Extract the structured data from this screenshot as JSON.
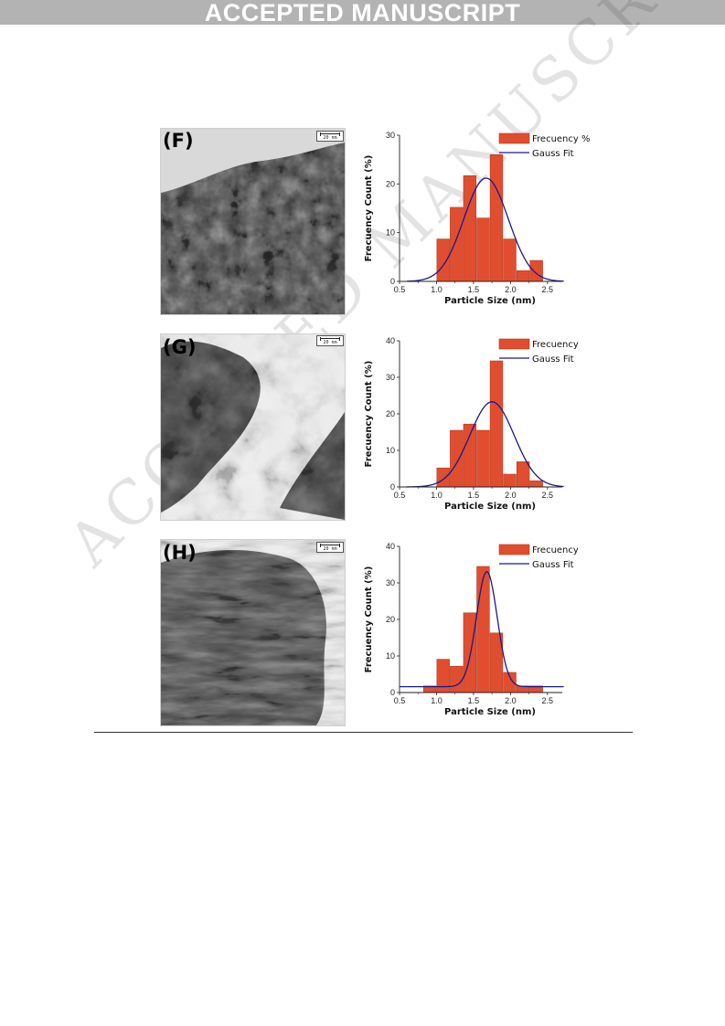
{
  "banner": {
    "text": "ACCEPTED MANUSCRIPT",
    "background": "#b3b3b3"
  },
  "watermark": {
    "text": "ACCEPTED MANUSCRIPT"
  },
  "colors": {
    "bar": "#e04e2f",
    "bar_edge": "#b23a22",
    "fit": "#1a1a8c"
  },
  "panels": [
    {
      "label": "(F)",
      "image": {
        "kind": "TEM micrograph",
        "scale_bar": "20 nm",
        "tone": "fine-grain"
      },
      "chart_data": {
        "type": "bar",
        "title": "",
        "xlabel": "Particle Size (nm)",
        "ylabel": "Frecuency Count (%)",
        "xlim": [
          0.5,
          2.7
        ],
        "ylim": [
          0,
          30
        ],
        "x_ticks": [
          "0.5",
          "1.0",
          "1.5",
          "2.0",
          "2.5"
        ],
        "y_ticks": [
          "0",
          "10",
          "20",
          "30"
        ],
        "bar_width": 0.17,
        "bars": [
          {
            "x": 1.09,
            "y": 8.7
          },
          {
            "x": 1.27,
            "y": 15.2
          },
          {
            "x": 1.45,
            "y": 21.7
          },
          {
            "x": 1.63,
            "y": 13.0
          },
          {
            "x": 1.81,
            "y": 26.0
          },
          {
            "x": 1.99,
            "y": 8.7
          },
          {
            "x": 2.17,
            "y": 2.2
          },
          {
            "x": 2.35,
            "y": 4.3
          }
        ],
        "fit": {
          "type": "gauss",
          "name": "Gauss Fit",
          "y0": 0,
          "amplitude": 21.2,
          "center": 1.67,
          "sigma": 0.3,
          "x_range": [
            0.6,
            2.72
          ]
        },
        "legend": {
          "bar_label": "Frecuency %",
          "line_label": "Gauss Fit",
          "placement": "top-right"
        }
      }
    },
    {
      "label": "(G)",
      "image": {
        "kind": "TEM micrograph",
        "scale_bar": "20 nm",
        "tone": "flaky"
      },
      "chart_data": {
        "type": "bar",
        "title": "",
        "xlabel": "Particle Size (nm)",
        "ylabel": "Frecuency Count (%)",
        "xlim": [
          0.5,
          2.7
        ],
        "ylim": [
          0,
          40
        ],
        "x_ticks": [
          "0.5",
          "1.0",
          "1.5",
          "2.0",
          "2.5"
        ],
        "y_ticks": [
          "0",
          "10",
          "20",
          "30",
          "40"
        ],
        "bar_width": 0.17,
        "bars": [
          {
            "x": 1.09,
            "y": 5.2
          },
          {
            "x": 1.27,
            "y": 15.5
          },
          {
            "x": 1.45,
            "y": 17.2
          },
          {
            "x": 1.63,
            "y": 15.5
          },
          {
            "x": 1.81,
            "y": 34.5
          },
          {
            "x": 1.99,
            "y": 3.5
          },
          {
            "x": 2.17,
            "y": 6.9
          },
          {
            "x": 2.35,
            "y": 1.7
          }
        ],
        "fit": {
          "type": "gauss",
          "name": "Gauss Fit",
          "y0": 0,
          "amplitude": 23.3,
          "center": 1.75,
          "sigma": 0.3,
          "x_range": [
            0.6,
            2.72
          ]
        },
        "legend": {
          "bar_label": "Frecuency",
          "line_label": "Gauss Fit",
          "placement": "top-right"
        }
      }
    },
    {
      "label": "(H)",
      "image": {
        "kind": "TEM micrograph",
        "scale_bar": "20 nm",
        "tone": "fibrous"
      },
      "chart_data": {
        "type": "bar",
        "title": "",
        "xlabel": "Particle Size (nm)",
        "ylabel": "Frecuency Count (%)",
        "xlim": [
          0.5,
          2.7
        ],
        "ylim": [
          0,
          40
        ],
        "x_ticks": [
          "0.5",
          "1.0",
          "1.5",
          "2.0",
          "2.5"
        ],
        "y_ticks": [
          "0",
          "10",
          "20",
          "30",
          "40"
        ],
        "bar_width": 0.17,
        "bars": [
          {
            "x": 0.91,
            "y": 1.8
          },
          {
            "x": 1.09,
            "y": 9.1
          },
          {
            "x": 1.27,
            "y": 7.2
          },
          {
            "x": 1.45,
            "y": 21.8
          },
          {
            "x": 1.63,
            "y": 34.5
          },
          {
            "x": 1.81,
            "y": 16.3
          },
          {
            "x": 1.99,
            "y": 5.5
          },
          {
            "x": 2.17,
            "y": 1.8
          },
          {
            "x": 2.35,
            "y": 1.8
          }
        ],
        "fit": {
          "type": "gauss",
          "name": "Gauss Fit",
          "y0": 1.6,
          "amplitude": 31.5,
          "center": 1.68,
          "sigma": 0.14,
          "x_range": [
            0.5,
            2.72
          ]
        },
        "legend": {
          "bar_label": "Frecuency",
          "line_label": "Gauss Fit",
          "placement": "top-right"
        }
      }
    }
  ]
}
